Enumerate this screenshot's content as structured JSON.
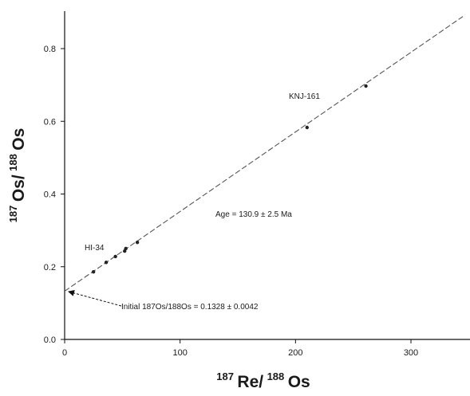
{
  "chart_data": {
    "type": "scatter",
    "title": "",
    "xlabel": {
      "sup": "187",
      "base": "Re/",
      "sup2": "188",
      "base2": "Os"
    },
    "ylabel": {
      "sup": "187",
      "base": "Os/",
      "sup2": "188",
      "base2": "Os"
    },
    "xlim": [
      0,
      350
    ],
    "ylim": [
      0.0,
      0.9
    ],
    "xticks": [
      0,
      100,
      200,
      300
    ],
    "xtick_labels": [
      "0",
      "100",
      "200",
      "300"
    ],
    "yticks": [
      0.0,
      0.2,
      0.4,
      0.6,
      0.8
    ],
    "ytick_labels": [
      "0.0",
      "0.2",
      "0.4",
      "0.6",
      "0.8"
    ],
    "grid": false,
    "series": [
      {
        "points": [
          {
            "x": 25,
            "y": 0.186
          },
          {
            "x": 36,
            "y": 0.212
          },
          {
            "x": 44,
            "y": 0.228
          },
          {
            "x": 52,
            "y": 0.243
          },
          {
            "x": 53,
            "y": 0.25
          },
          {
            "x": 63,
            "y": 0.267
          },
          {
            "x": 210,
            "y": 0.583
          },
          {
            "x": 261,
            "y": 0.697
          }
        ]
      }
    ],
    "isochron": {
      "intercept": 0.1328,
      "slope": 0.00219,
      "style": "dashed"
    },
    "annotations": {
      "knj": "KNJ-161",
      "hi": "HI-34",
      "age": "Age = 130.9 ± 2.5 Ma",
      "initial": "Initial 187Os/188Os = 0.1328 ± 0.0042"
    },
    "colors": {
      "axis": "#111111",
      "line": "#555555",
      "point": "#222222"
    }
  }
}
